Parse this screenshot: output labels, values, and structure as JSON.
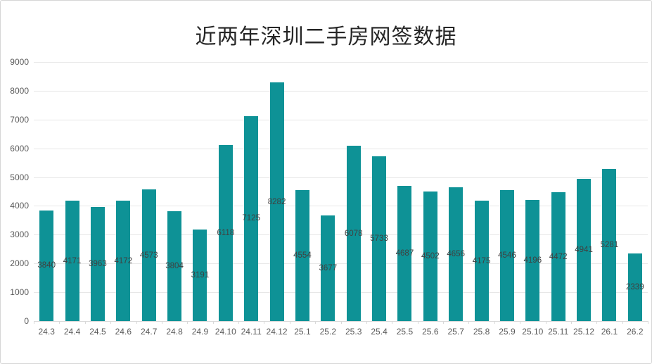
{
  "page": {
    "background_color": "#ffffff",
    "border_color": "#d6d6d6"
  },
  "chart_data": {
    "type": "bar",
    "title": "近两年深圳二手房网签数据",
    "categories": [
      "24.3",
      "24.4",
      "24.5",
      "24.6",
      "24.7",
      "24.8",
      "24.9",
      "24.10",
      "24.11",
      "24.12",
      "25.1",
      "25.2",
      "25.3",
      "25.4",
      "25.5",
      "25.6",
      "25.7",
      "25.8",
      "25.9",
      "25.10",
      "25.11",
      "25.12",
      "26.1",
      "26.2"
    ],
    "values": [
      3840,
      4171,
      3963,
      4172,
      4573,
      3804,
      3191,
      6118,
      7125,
      8282,
      4554,
      3677,
      6078,
      5733,
      4687,
      4502,
      4656,
      4175,
      4546,
      4196,
      4472,
      4941,
      5281,
      2339
    ],
    "xlabel": "",
    "ylabel": "",
    "ylim": [
      0,
      9000
    ],
    "yticks": [
      0,
      1000,
      2000,
      3000,
      4000,
      5000,
      6000,
      7000,
      8000,
      9000
    ],
    "grid": true,
    "legend": "none",
    "data_label_position": "inside-center",
    "bar_color": "#0e9296",
    "data_label_color": "#404040",
    "axis_text_color": "#595959",
    "gridline_color": "#e7e7e7",
    "axis_line_color": "#d9d9d9",
    "title_color": "#262626"
  }
}
